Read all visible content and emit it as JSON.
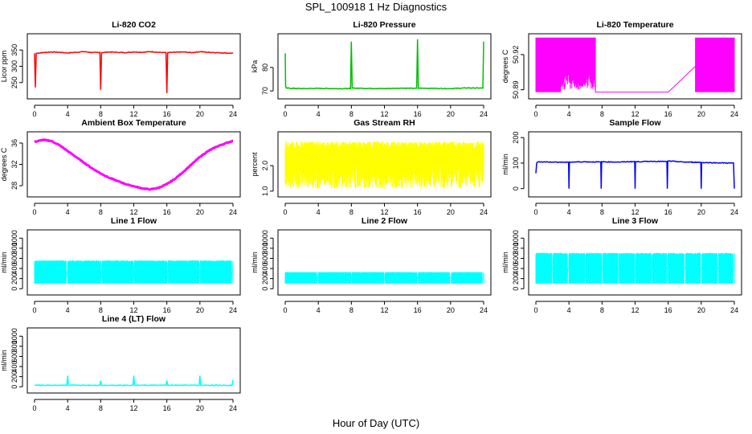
{
  "figure": {
    "title": "SPL_100918  1 Hz Diagnostics",
    "xlabel": "Hour of Day (UTC)"
  },
  "chart_data": [
    {
      "id": "co2",
      "type": "line",
      "title": "Li-820 CO2",
      "ylabel": "Licor ppm",
      "color": "#ff0000",
      "xlim": [
        0,
        24
      ],
      "ylim": [
        210,
        390
      ],
      "xticks": [
        0,
        4,
        8,
        12,
        16,
        20,
        24
      ],
      "yticks": [
        250,
        300,
        350
      ],
      "x": [
        0,
        0.1,
        0.2,
        1,
        2,
        3,
        4,
        5,
        6,
        7,
        7.9,
        8.0,
        8.1,
        9,
        10,
        11,
        12,
        13,
        14,
        15,
        15.9,
        16.0,
        16.1,
        17,
        18,
        19,
        20,
        21,
        22,
        23,
        24
      ],
      "y": [
        340,
        235,
        340,
        342,
        344,
        343,
        341,
        343,
        345,
        342,
        343,
        228,
        342,
        344,
        343,
        342,
        344,
        343,
        345,
        343,
        342,
        218,
        342,
        343,
        344,
        342,
        345,
        343,
        342,
        341,
        340
      ]
    },
    {
      "id": "pressure",
      "type": "line",
      "title": "Li-820 Pressure",
      "ylabel": "kPa",
      "color": "#00c000",
      "xlim": [
        0,
        24
      ],
      "ylim": [
        68,
        93
      ],
      "xticks": [
        0,
        4,
        8,
        12,
        16,
        20,
        24
      ],
      "yticks": [
        70,
        80
      ],
      "x": [
        0,
        0.05,
        0.15,
        2,
        4,
        6,
        7.9,
        8.0,
        8.1,
        10,
        12,
        14,
        15.9,
        16.0,
        16.1,
        18,
        20,
        22,
        23.9,
        24.0
      ],
      "y": [
        86,
        72,
        71.2,
        71,
        71.1,
        71,
        71,
        91,
        71.2,
        71.1,
        71,
        71.2,
        71.1,
        92,
        71.2,
        71.1,
        71,
        71.3,
        71.2,
        91
      ]
    },
    {
      "id": "temperature",
      "type": "area",
      "title": "Li-820 Temperature",
      "ylabel": "degrees C",
      "color": "#ff00ff",
      "xlim": [
        0,
        24
      ],
      "ylim": [
        50.885,
        50.935
      ],
      "xticks": [
        0,
        4,
        8,
        12,
        16,
        20,
        24
      ],
      "yticks": [
        50.89,
        50.92
      ],
      "bands": [
        [
          0,
          7.2
        ],
        [
          19.3,
          24
        ]
      ],
      "x": [
        0,
        3,
        3.5,
        4,
        5,
        6,
        7,
        7.2,
        8,
        12,
        16,
        19.3,
        20,
        22,
        23,
        24
      ],
      "y": [
        50.93,
        50.93,
        50.89,
        50.93,
        50.905,
        50.905,
        50.905,
        50.888,
        50.888,
        50.888,
        50.888,
        50.91,
        50.91,
        50.93,
        50.93,
        50.93
      ]
    },
    {
      "id": "box_temp",
      "type": "line",
      "title": "Ambient Box Temperature",
      "ylabel": "degrees C",
      "color": "#ff00ff",
      "xlim": [
        0,
        24
      ],
      "ylim": [
        26.5,
        37.5
      ],
      "xticks": [
        0,
        4,
        8,
        12,
        16,
        20,
        24
      ],
      "yticks": [
        28,
        32,
        36
      ],
      "x": [
        0,
        1,
        2,
        3,
        4,
        5,
        6,
        7,
        8,
        9,
        10,
        11,
        12,
        13,
        14,
        15,
        16,
        17,
        18,
        19,
        20,
        21,
        22,
        23,
        24
      ],
      "y": [
        36.2,
        36.6,
        36.4,
        35.6,
        34.5,
        33.4,
        32.3,
        31.2,
        30.3,
        29.5,
        28.9,
        28.3,
        27.9,
        27.5,
        27.3,
        27.6,
        28.3,
        29.3,
        30.6,
        32.0,
        33.4,
        34.5,
        35.3,
        35.9,
        36.4
      ]
    },
    {
      "id": "rh",
      "type": "area",
      "title": "Gas Stream RH",
      "ylabel": "percent",
      "color": "#ffff00",
      "xlim": [
        0,
        24
      ],
      "ylim": [
        0.9,
        3.2
      ],
      "xticks": [
        0,
        4,
        8,
        12,
        16,
        20,
        24
      ],
      "yticks": [
        1.0,
        2.0
      ],
      "band_low": 1.1,
      "band_high": 2.95
    },
    {
      "id": "sample_flow",
      "type": "line",
      "title": "Sample Flow",
      "ylabel": "ml/min",
      "color": "#0000ff",
      "xlim": [
        0,
        24
      ],
      "ylim": [
        -20,
        210
      ],
      "xticks": [
        0,
        4,
        8,
        12,
        16,
        20,
        24
      ],
      "yticks": [
        0,
        100,
        200
      ],
      "x": [
        0,
        0.1,
        0.3,
        2,
        3.95,
        4.0,
        4.05,
        6,
        7.85,
        7.9,
        7.95,
        10,
        11.95,
        12.0,
        12.05,
        14,
        15.85,
        15.9,
        15.95,
        18,
        19.95,
        20.0,
        20.05,
        22,
        23.9,
        24.0
      ],
      "y": [
        60,
        100,
        105,
        104,
        103,
        0,
        104,
        105,
        104,
        0,
        105,
        104,
        106,
        0,
        105,
        107,
        106,
        0,
        108,
        104,
        103,
        0,
        102,
        101,
        100,
        0
      ]
    },
    {
      "id": "line1",
      "type": "area",
      "title": "Line 1 Flow",
      "ylabel": "ml/min",
      "color": "#00ffff",
      "xlim": [
        0,
        24
      ],
      "ylim": [
        -60,
        1100
      ],
      "xticks": [
        0,
        4,
        8,
        12,
        16,
        20,
        24
      ],
      "yticks": [
        0,
        200,
        400,
        600,
        800,
        1000
      ],
      "band_low": 100,
      "band_high": 560,
      "gaps": [
        3.9,
        8.1,
        12.0,
        16.1,
        19.95,
        23.9
      ]
    },
    {
      "id": "line2",
      "type": "area",
      "title": "Line 2 Flow",
      "ylabel": "ml/min",
      "color": "#00ffff",
      "xlim": [
        0,
        24
      ],
      "ylim": [
        -60,
        1100
      ],
      "xticks": [
        0,
        4,
        8,
        12,
        16,
        20,
        24
      ],
      "yticks": [
        0,
        200,
        400,
        600,
        800,
        1000
      ],
      "band_low": 100,
      "band_high": 330,
      "gaps": [
        3.9,
        8.0,
        12.0,
        16.0,
        20.0,
        23.9
      ]
    },
    {
      "id": "line3",
      "type": "area",
      "title": "Line 3 Flow",
      "ylabel": "ml/min",
      "color": "#00ffff",
      "xlim": [
        0,
        24
      ],
      "ylim": [
        -60,
        1100
      ],
      "xticks": [
        0,
        4,
        8,
        12,
        16,
        20,
        24
      ],
      "yticks": [
        0,
        200,
        400,
        600,
        800,
        1000
      ],
      "band_low": 100,
      "band_high": 710,
      "gaps": [
        2.0,
        3.9,
        6.0,
        8.0,
        10.0,
        12.0,
        14.0,
        15.9,
        18.0,
        20.0,
        22.0,
        23.9
      ]
    },
    {
      "id": "line4",
      "type": "line",
      "title": "Line 4 (LT) Flow",
      "ylabel": "ml/min",
      "color": "#00ffff",
      "xlim": [
        0,
        24
      ],
      "ylim": [
        -60,
        1100
      ],
      "xticks": [
        0,
        4,
        8,
        12,
        16,
        20,
        24
      ],
      "yticks": [
        0,
        200,
        400,
        600,
        800,
        1000
      ],
      "x": [
        0,
        3.9,
        4.0,
        4.1,
        7.9,
        8.0,
        8.1,
        11.9,
        12.0,
        12.1,
        15.9,
        16.0,
        16.1,
        19.9,
        20.0,
        20.1,
        23.9,
        24.0
      ],
      "y": [
        30,
        30,
        220,
        30,
        30,
        120,
        30,
        30,
        220,
        30,
        30,
        120,
        30,
        30,
        220,
        30,
        30,
        130
      ]
    }
  ]
}
